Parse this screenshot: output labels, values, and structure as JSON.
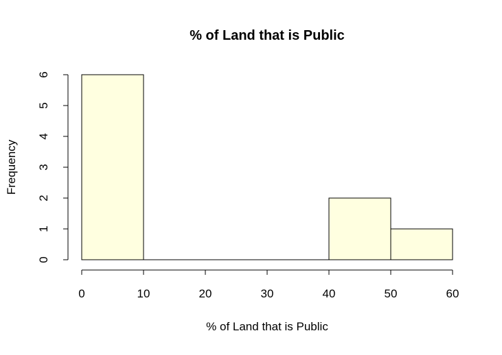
{
  "chart_data": {
    "type": "bar",
    "title": "% of Land that is Public",
    "xlabel": "% of Land that is Public",
    "ylabel": "Frequency",
    "bins": [
      {
        "start": 0,
        "end": 10,
        "count": 6
      },
      {
        "start": 10,
        "end": 20,
        "count": 0
      },
      {
        "start": 20,
        "end": 30,
        "count": 0
      },
      {
        "start": 30,
        "end": 40,
        "count": 0
      },
      {
        "start": 40,
        "end": 50,
        "count": 2
      },
      {
        "start": 50,
        "end": 60,
        "count": 1
      }
    ],
    "xlim": [
      0,
      60
    ],
    "ylim": [
      0,
      6
    ],
    "x_ticks": [
      0,
      10,
      20,
      30,
      40,
      50,
      60
    ],
    "y_ticks": [
      0,
      1,
      2,
      3,
      4,
      5,
      6
    ],
    "bar_color": "#FFFFE0",
    "edge_color": "#000000",
    "grid": false
  }
}
